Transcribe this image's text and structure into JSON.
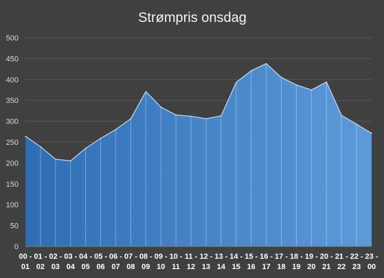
{
  "chart_data": {
    "type": "area",
    "title": "Strømpris onsdag",
    "xlabel": "",
    "ylabel": "",
    "ylim": [
      0,
      500
    ],
    "yticks": [
      0,
      50,
      100,
      150,
      200,
      250,
      300,
      350,
      400,
      450,
      500
    ],
    "grid": true,
    "legend": "none",
    "categories": [
      "00 - 01",
      "01 - 02",
      "02 - 03",
      "03 - 04",
      "04 - 05",
      "05 - 06",
      "06 - 07",
      "07 - 08",
      "08 - 09",
      "09 - 10",
      "10 - 11",
      "11 - 12",
      "12 - 13",
      "13 - 14",
      "14 - 15",
      "15 - 16",
      "16 - 17",
      "17 - 18",
      "18 - 19",
      "19 - 20",
      "20 - 21",
      "21 - 22",
      "22 - 23",
      "23 - 00"
    ],
    "tick_labels": [
      {
        "line1": "00 -",
        "line2": "01"
      },
      {
        "line1": "01 -",
        "line2": "02"
      },
      {
        "line1": "02 -",
        "line2": "03"
      },
      {
        "line1": "03 -",
        "line2": "04"
      },
      {
        "line1": "04 -",
        "line2": "05"
      },
      {
        "line1": "05 -",
        "line2": "06"
      },
      {
        "line1": "06 -",
        "line2": "07"
      },
      {
        "line1": "07 -",
        "line2": "08"
      },
      {
        "line1": "08 -",
        "line2": "09"
      },
      {
        "line1": "09 -",
        "line2": "10"
      },
      {
        "line1": "10 -",
        "line2": "11"
      },
      {
        "line1": "11 -",
        "line2": "12"
      },
      {
        "line1": "12 -",
        "line2": "13"
      },
      {
        "line1": "13 -",
        "line2": "14"
      },
      {
        "line1": "14 -",
        "line2": "15"
      },
      {
        "line1": "15 -",
        "line2": "16"
      },
      {
        "line1": "16 -",
        "line2": "17"
      },
      {
        "line1": "17 -",
        "line2": "18"
      },
      {
        "line1": "18 -",
        "line2": "19"
      },
      {
        "line1": "19 -",
        "line2": "20"
      },
      {
        "line1": "20 -",
        "line2": "21"
      },
      {
        "line1": "21 -",
        "line2": "22"
      },
      {
        "line1": "22 -",
        "line2": "23"
      },
      {
        "line1": "23 -",
        "line2": "00"
      }
    ],
    "series": [
      {
        "values": [
          264,
          239,
          209,
          205,
          235,
          259,
          280,
          306,
          371,
          334,
          315,
          312,
          306,
          313,
          393,
          421,
          438,
          405,
          387,
          375,
          394,
          314,
          293,
          271
        ],
        "color_start": "#2e6db4",
        "color_end": "#5b9bd9",
        "edge_color": "#c9ddf2"
      }
    ],
    "colors": {
      "background": "#404040",
      "gridline": "#595959",
      "axis": "#7f7f7f"
    }
  }
}
